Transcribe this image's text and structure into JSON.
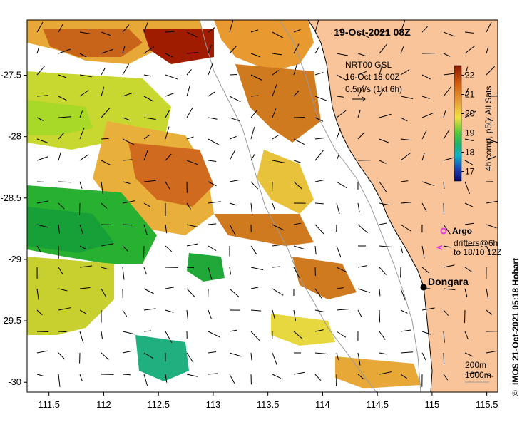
{
  "title_date": "19-Oct-2021 08Z",
  "current_label": {
    "line1": "NRT00 GSL",
    "line2": "16-Oct 18:00Z",
    "line3": "0.5m/s (1kt 6h)"
  },
  "colorbar": {
    "label": "4h comp, p50, All Sats",
    "ticks": [
      "22",
      "21",
      "20",
      "19",
      "18",
      "17"
    ],
    "tick_values": [
      22,
      21,
      20,
      19,
      18,
      17
    ],
    "range": [
      16.5,
      22.5
    ]
  },
  "legend": {
    "argo_label": "Argo",
    "drifters_line1": "drifters@6h",
    "drifters_line2": "to 18/10 12Z"
  },
  "place": {
    "name": "Dongara",
    "lon": 114.93,
    "lat": -29.25
  },
  "isobaths": {
    "line1": "200m",
    "line2": "1000m"
  },
  "credit": "IMOS 21-Oct-2021 05:18 Hobart",
  "copyright_symbol": "©",
  "axes": {
    "x_ticks": [
      "111.5",
      "112",
      "112.5",
      "113",
      "113.5",
      "114",
      "114.5",
      "115",
      "115.5"
    ],
    "x_values": [
      111.5,
      112,
      112.5,
      113,
      113.5,
      114,
      114.5,
      115,
      115.5
    ],
    "y_ticks": [
      "-27.5",
      "-28",
      "-28.5",
      "-29",
      "-29.5",
      "-30"
    ],
    "y_values": [
      -27.5,
      -28,
      -28.5,
      -29,
      -29.5,
      -30
    ],
    "lon_range": [
      111.3,
      115.6
    ],
    "lat_range": [
      -30.08,
      -27.05
    ]
  },
  "colors": {
    "land": "#f9c49a",
    "ocean_missing": "#ffffff",
    "isobath": "#9a9a9a",
    "argo": "#e040e0",
    "drifter": "#e040e0"
  }
}
